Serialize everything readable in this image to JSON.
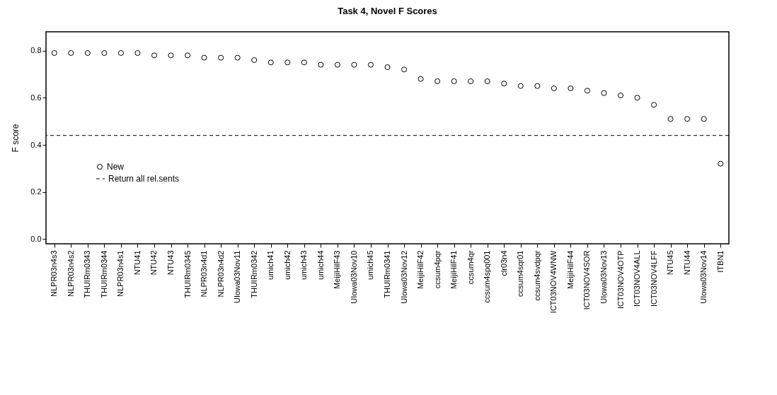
{
  "chart_data": {
    "type": "scatter",
    "title": "Task 4, Novel F Scores",
    "ylabel": "F score",
    "categories": [
      "NLPR03n4s3",
      "NLPR03n4s2",
      "THUIRm0343",
      "THUIRm0344",
      "NLPR03n4s1",
      "NTU41",
      "NTU42",
      "NTU43",
      "THUIRm0345",
      "NLPR03n4d1",
      "NLPR03n4d2",
      "UIowa03Nov11",
      "THUIRm0342",
      "umich41",
      "umich42",
      "umich43",
      "umich44",
      "MeijiHilF43",
      "UIowa03Nov10",
      "umich45",
      "THUIRm0341",
      "UIowa03Nov12",
      "MeijiHilF42",
      "ccsum4pqr",
      "MeijiHilF41",
      "ccsum4qr",
      "ccsum4spq001",
      "clr03n4",
      "ccsum4sqr01",
      "ccsum4svdpqr",
      "ICT03NOV4WNW",
      "MeijiHilF44",
      "ICT03NOV4SOR",
      "UIowa03Nov13",
      "ICT03NOV4OTP",
      "ICT03NOV4ALL",
      "ICT03NOV4LFF",
      "NTU45",
      "NTU44",
      "UIowa03Nov14",
      "ITBN1"
    ],
    "series": [
      {
        "name": "New",
        "color": "#000000",
        "values": [
          0.79,
          0.79,
          0.79,
          0.79,
          0.79,
          0.79,
          0.78,
          0.78,
          0.78,
          0.77,
          0.77,
          0.77,
          0.76,
          0.75,
          0.75,
          0.75,
          0.74,
          0.74,
          0.74,
          0.74,
          0.73,
          0.72,
          0.68,
          0.67,
          0.67,
          0.67,
          0.67,
          0.66,
          0.65,
          0.65,
          0.64,
          0.64,
          0.63,
          0.62,
          0.61,
          0.6,
          0.57,
          0.51,
          0.51,
          0.51,
          0.32
        ]
      }
    ],
    "ylim": [
      -0.02,
      0.88
    ],
    "yticks": [
      {
        "value": 0,
        "label": "0.0"
      },
      0.2,
      0.4,
      0.6,
      0.8
    ],
    "ref_lines": [
      {
        "axis": "y",
        "value": 0.44,
        "label": "Return all rel.sents",
        "color": "#000000",
        "line_style": "dashed"
      }
    ],
    "marker": "circle",
    "grid": false,
    "legend": "left"
  }
}
